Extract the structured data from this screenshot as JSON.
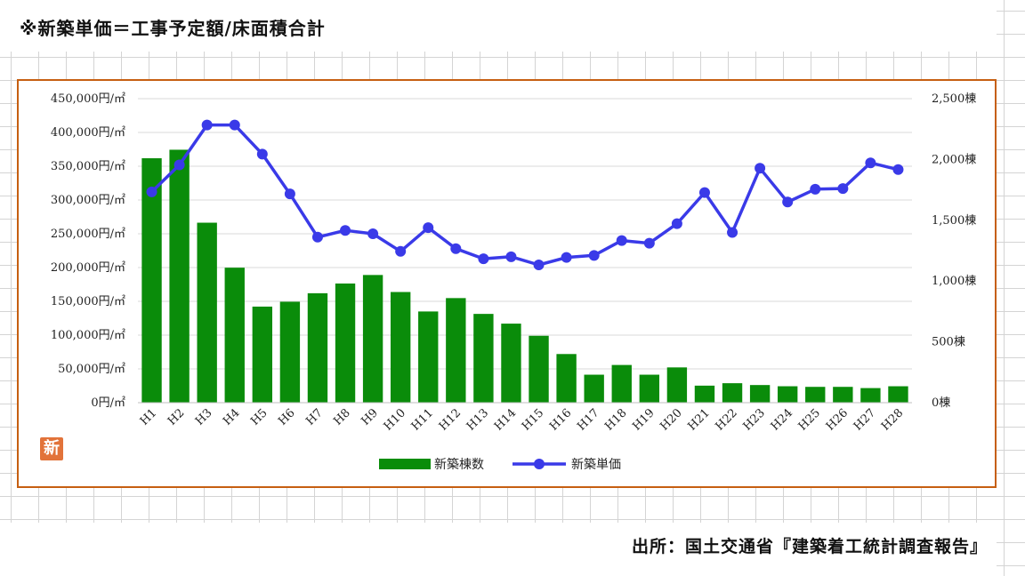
{
  "page": {
    "title": "※新築単価＝工事予定額/床面積合計",
    "source": "出所：国土交通省『建築着工統計調査報告』",
    "logo_text": "新",
    "logo_icon": "logo-seal-icon"
  },
  "chart_data": {
    "type": "bar+line",
    "categories": [
      "H1",
      "H2",
      "H3",
      "H4",
      "H5",
      "H6",
      "H7",
      "H8",
      "H9",
      "H10",
      "H11",
      "H12",
      "H13",
      "H14",
      "H15",
      "H16",
      "H17",
      "H18",
      "H19",
      "H20",
      "H21",
      "H22",
      "H23",
      "H24",
      "H25",
      "H26",
      "H27",
      "H28"
    ],
    "series": [
      {
        "name": "新築棟数",
        "type": "bar",
        "axis": "right",
        "color": "#0a8c0a",
        "values": [
          2010,
          2080,
          1480,
          1110,
          790,
          830,
          900,
          980,
          1050,
          910,
          750,
          860,
          730,
          650,
          550,
          400,
          230,
          310,
          230,
          290,
          140,
          160,
          145,
          135,
          130,
          130,
          120,
          135
        ]
      },
      {
        "name": "新築単価",
        "type": "line",
        "axis": "left",
        "color": "#3a3ae8",
        "values": [
          312000,
          352000,
          411000,
          411000,
          368000,
          309000,
          245000,
          255000,
          250000,
          224000,
          259000,
          228000,
          213000,
          216000,
          204000,
          215000,
          218000,
          240000,
          236000,
          265000,
          311000,
          252000,
          347000,
          297000,
          316000,
          317000,
          355000,
          345000
        ]
      }
    ],
    "left_axis": {
      "min": 0,
      "max": 450000,
      "ticks": [
        "0円/㎡",
        "50,000円/㎡",
        "100,000円/㎡",
        "150,000円/㎡",
        "200,000円/㎡",
        "250,000円/㎡",
        "300,000円/㎡",
        "350,000円/㎡",
        "400,000円/㎡",
        "450,000円/㎡"
      ]
    },
    "right_axis": {
      "min": 0,
      "max": 2500,
      "ticks": [
        "0棟",
        "500棟",
        "1,000棟",
        "1,500棟",
        "2,000棟",
        "2,500棟"
      ]
    },
    "grid": true,
    "legend": "bottom-center",
    "legend_items": [
      "新築棟数",
      "新築単価"
    ]
  }
}
